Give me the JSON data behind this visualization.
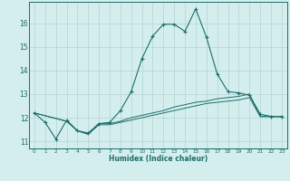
{
  "title": "",
  "xlabel": "Humidex (Indice chaleur)",
  "ylabel": "",
  "bg_color": "#d4eeee",
  "grid_color": "#b8d8d8",
  "line_color": "#1a6e6a",
  "xlim": [
    -0.5,
    23.5
  ],
  "ylim": [
    10.7,
    16.9
  ],
  "xticks": [
    0,
    1,
    2,
    3,
    4,
    5,
    6,
    7,
    8,
    9,
    10,
    11,
    12,
    13,
    14,
    15,
    16,
    17,
    18,
    19,
    20,
    21,
    22,
    23
  ],
  "yticks": [
    11,
    12,
    13,
    14,
    15,
    16
  ],
  "main_x": [
    0,
    1,
    2,
    3,
    4,
    5,
    6,
    7,
    8,
    9,
    10,
    11,
    12,
    13,
    14,
    15,
    16,
    17,
    18,
    19,
    20,
    21,
    22,
    23
  ],
  "main_y": [
    12.2,
    11.8,
    11.1,
    11.9,
    11.45,
    11.35,
    11.75,
    11.8,
    12.3,
    13.1,
    14.5,
    15.45,
    15.95,
    15.95,
    15.65,
    16.6,
    15.4,
    13.85,
    13.1,
    13.05,
    12.95,
    12.15,
    12.05,
    12.05
  ],
  "line2_x": [
    0,
    3,
    4,
    5,
    6,
    7,
    8,
    9,
    10,
    11,
    12,
    13,
    14,
    15,
    16,
    17,
    18,
    19,
    20,
    21,
    22,
    23
  ],
  "line2_y": [
    12.2,
    11.85,
    11.45,
    11.3,
    11.75,
    11.75,
    11.85,
    12.0,
    12.1,
    12.2,
    12.3,
    12.45,
    12.55,
    12.65,
    12.7,
    12.8,
    12.85,
    12.9,
    13.0,
    12.05,
    12.05,
    12.05
  ],
  "line3_x": [
    0,
    3,
    4,
    5,
    6,
    7,
    8,
    9,
    10,
    11,
    12,
    13,
    14,
    15,
    16,
    17,
    18,
    19,
    20,
    21,
    22,
    23
  ],
  "line3_y": [
    12.2,
    11.85,
    11.45,
    11.3,
    11.7,
    11.7,
    11.8,
    11.9,
    12.0,
    12.1,
    12.2,
    12.3,
    12.4,
    12.5,
    12.6,
    12.65,
    12.7,
    12.75,
    12.85,
    12.05,
    12.05,
    12.05
  ]
}
